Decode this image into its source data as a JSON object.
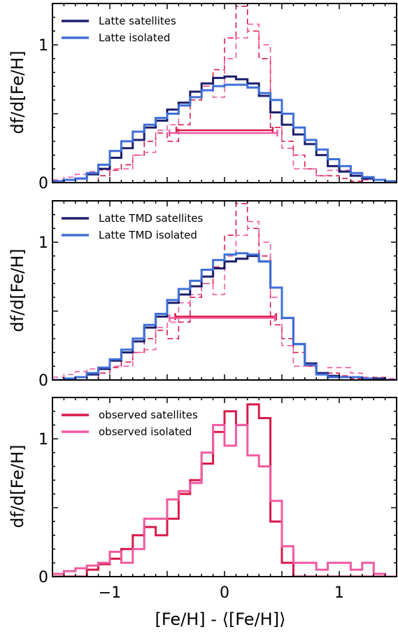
{
  "colors": {
    "sat_sim": "#1b1f6b",
    "iso_sim": "#3f6fd8",
    "obs_sat": "#d81a4a",
    "obs_iso": "#f05aa0"
  },
  "figure": {
    "xlabel": "[Fe/H] - ⟨[Fe/H]⟩",
    "xticks": [
      -1,
      0,
      1
    ],
    "xtick_labels": [
      "−1",
      "0",
      "1"
    ]
  },
  "chart_data": [
    {
      "type": "line",
      "drawstyle": "steps",
      "ylabel": "df/d[Fe/H]",
      "xlim": [
        -1.5,
        1.5
      ],
      "ylim": [
        0,
        1.3
      ],
      "yticks": [
        0,
        1
      ],
      "ytick_labels": [
        "0",
        "1"
      ],
      "legend_position": "top-left",
      "bin_edges": [
        -1.5,
        -1.4,
        -1.3,
        -1.2,
        -1.1,
        -1.0,
        -0.9,
        -0.8,
        -0.7,
        -0.6,
        -0.5,
        -0.4,
        -0.3,
        -0.2,
        -0.1,
        0.0,
        0.1,
        0.2,
        0.3,
        0.4,
        0.5,
        0.6,
        0.7,
        0.8,
        0.9,
        1.0,
        1.1,
        1.2,
        1.3,
        1.4,
        1.5
      ],
      "series": [
        {
          "name": "Latte satellites",
          "style": "solid",
          "color_key": "sat_sim",
          "legend": true,
          "values": [
            0.01,
            0.02,
            0.03,
            0.06,
            0.1,
            0.18,
            0.25,
            0.31,
            0.4,
            0.45,
            0.53,
            0.58,
            0.66,
            0.72,
            0.76,
            0.77,
            0.75,
            0.72,
            0.63,
            0.51,
            0.42,
            0.35,
            0.28,
            0.2,
            0.12,
            0.08,
            0.05,
            0.03,
            0.02,
            0.01
          ]
        },
        {
          "name": "Latte isolated",
          "style": "solid",
          "color_key": "iso_sim",
          "legend": true,
          "values": [
            0.01,
            0.02,
            0.03,
            0.07,
            0.13,
            0.23,
            0.3,
            0.37,
            0.42,
            0.47,
            0.5,
            0.56,
            0.62,
            0.67,
            0.7,
            0.71,
            0.71,
            0.69,
            0.65,
            0.6,
            0.5,
            0.4,
            0.31,
            0.24,
            0.17,
            0.12,
            0.07,
            0.04,
            0.02,
            0.01
          ]
        },
        {
          "style": "dashed",
          "color_key": "obs_sat",
          "legend": false,
          "values": [
            0.0,
            0.0,
            0.0,
            0.0,
            0.05,
            0.09,
            0.13,
            0.2,
            0.3,
            0.36,
            0.3,
            0.42,
            0.6,
            0.7,
            0.82,
            1.05,
            1.28,
            1.1,
            0.9,
            0.4,
            0.3,
            0.2,
            0.1,
            0.05,
            0.05,
            0.03,
            0.01,
            0.0,
            0.0,
            0.0
          ]
        },
        {
          "style": "dashed",
          "color_key": "obs_iso",
          "legend": false,
          "values": [
            0.02,
            0.04,
            0.06,
            0.08,
            0.09,
            0.1,
            0.1,
            0.2,
            0.22,
            0.38,
            0.42,
            0.56,
            0.62,
            0.7,
            0.62,
            0.9,
            1.05,
            1.15,
            1.0,
            0.6,
            0.25,
            0.1,
            0.1,
            0.05,
            0.09,
            0.09,
            0.05,
            0.02,
            0.02,
            0.01
          ]
        }
      ],
      "errorbars": [
        {
          "x_left": -0.42,
          "x_right": 0.42,
          "y": 0.38,
          "color_key": "obs_sat"
        },
        {
          "x_left": -0.48,
          "x_right": 0.46,
          "y": 0.36,
          "color_key": "obs_iso"
        }
      ]
    },
    {
      "type": "line",
      "drawstyle": "steps",
      "ylabel": "df/d[Fe/H]",
      "xlim": [
        -1.5,
        1.5
      ],
      "ylim": [
        0,
        1.3
      ],
      "yticks": [
        0,
        1
      ],
      "ytick_labels": [
        "0",
        "1"
      ],
      "legend_position": "top-left",
      "bin_edges": [
        -1.5,
        -1.4,
        -1.3,
        -1.2,
        -1.1,
        -1.0,
        -0.9,
        -0.8,
        -0.7,
        -0.6,
        -0.5,
        -0.4,
        -0.3,
        -0.2,
        -0.1,
        0.0,
        0.1,
        0.2,
        0.3,
        0.4,
        0.5,
        0.6,
        0.7,
        0.8,
        0.9,
        1.0,
        1.1,
        1.2,
        1.3,
        1.4,
        1.5
      ],
      "series": [
        {
          "name": "Latte TMD satellites",
          "style": "solid",
          "color_key": "sat_sim",
          "legend": true,
          "values": [
            0.0,
            0.01,
            0.02,
            0.04,
            0.08,
            0.14,
            0.2,
            0.28,
            0.38,
            0.46,
            0.56,
            0.62,
            0.68,
            0.75,
            0.81,
            0.86,
            0.88,
            0.9,
            0.86,
            0.67,
            0.45,
            0.26,
            0.12,
            0.05,
            0.03,
            0.02,
            0.02,
            0.01,
            0.01,
            0.0
          ]
        },
        {
          "name": "Latte TMD isolated",
          "style": "solid",
          "color_key": "iso_sim",
          "legend": true,
          "values": [
            0.0,
            0.01,
            0.02,
            0.05,
            0.09,
            0.15,
            0.22,
            0.3,
            0.4,
            0.48,
            0.58,
            0.66,
            0.72,
            0.8,
            0.87,
            0.91,
            0.92,
            0.91,
            0.86,
            0.67,
            0.45,
            0.26,
            0.11,
            0.04,
            0.02,
            0.02,
            0.02,
            0.01,
            0.0,
            0.0
          ]
        },
        {
          "style": "dashed",
          "color_key": "obs_sat",
          "legend": false,
          "values": [
            0.0,
            0.0,
            0.0,
            0.0,
            0.05,
            0.09,
            0.13,
            0.2,
            0.3,
            0.36,
            0.3,
            0.42,
            0.6,
            0.7,
            0.82,
            1.05,
            1.28,
            1.1,
            0.9,
            0.4,
            0.3,
            0.2,
            0.1,
            0.05,
            0.05,
            0.03,
            0.01,
            0.0,
            0.0,
            0.0
          ]
        },
        {
          "style": "dashed",
          "color_key": "obs_iso",
          "legend": false,
          "values": [
            0.02,
            0.04,
            0.06,
            0.08,
            0.09,
            0.1,
            0.1,
            0.2,
            0.22,
            0.38,
            0.42,
            0.56,
            0.62,
            0.7,
            0.62,
            0.9,
            1.05,
            1.15,
            1.0,
            0.6,
            0.25,
            0.1,
            0.1,
            0.05,
            0.09,
            0.09,
            0.05,
            0.02,
            0.02,
            0.01
          ]
        }
      ],
      "errorbars": [
        {
          "x_left": -0.43,
          "x_right": 0.45,
          "y": 0.46,
          "color_key": "obs_sat"
        },
        {
          "x_left": -0.48,
          "x_right": 0.44,
          "y": 0.45,
          "color_key": "obs_iso"
        }
      ]
    },
    {
      "type": "line",
      "drawstyle": "steps",
      "ylabel": "df/d[Fe/H]",
      "xlim": [
        -1.5,
        1.5
      ],
      "ylim": [
        0,
        1.3
      ],
      "yticks": [
        0,
        1
      ],
      "ytick_labels": [
        "0",
        "1"
      ],
      "legend_position": "top-left",
      "bin_edges": [
        -1.5,
        -1.4,
        -1.3,
        -1.2,
        -1.1,
        -1.0,
        -0.9,
        -0.8,
        -0.7,
        -0.6,
        -0.5,
        -0.4,
        -0.3,
        -0.2,
        -0.1,
        0.0,
        0.1,
        0.2,
        0.3,
        0.4,
        0.5,
        0.6,
        0.7,
        0.8,
        0.9,
        1.0,
        1.1,
        1.2,
        1.3,
        1.4,
        1.5
      ],
      "series": [
        {
          "name": "observed satellites",
          "style": "solid",
          "color_key": "obs_sat",
          "legend": true,
          "values": [
            0.0,
            0.0,
            0.0,
            0.05,
            0.09,
            0.13,
            0.2,
            0.3,
            0.36,
            0.3,
            0.42,
            0.6,
            0.7,
            0.82,
            1.05,
            1.2,
            1.1,
            1.25,
            1.15,
            0.4,
            0.1,
            0.0,
            0.0,
            0.0,
            0.0,
            0.0,
            0.0,
            0.0,
            0.0,
            0.0
          ]
        },
        {
          "name": "observed isolated",
          "style": "solid",
          "color_key": "obs_iso",
          "legend": true,
          "values": [
            0.02,
            0.04,
            0.06,
            0.08,
            0.1,
            0.18,
            0.1,
            0.2,
            0.42,
            0.42,
            0.56,
            0.62,
            0.68,
            0.9,
            1.1,
            0.95,
            1.1,
            0.88,
            0.8,
            0.55,
            0.22,
            0.1,
            0.1,
            0.05,
            0.1,
            0.1,
            0.05,
            0.1,
            0.02,
            0.0
          ]
        }
      ],
      "errorbars": []
    }
  ]
}
